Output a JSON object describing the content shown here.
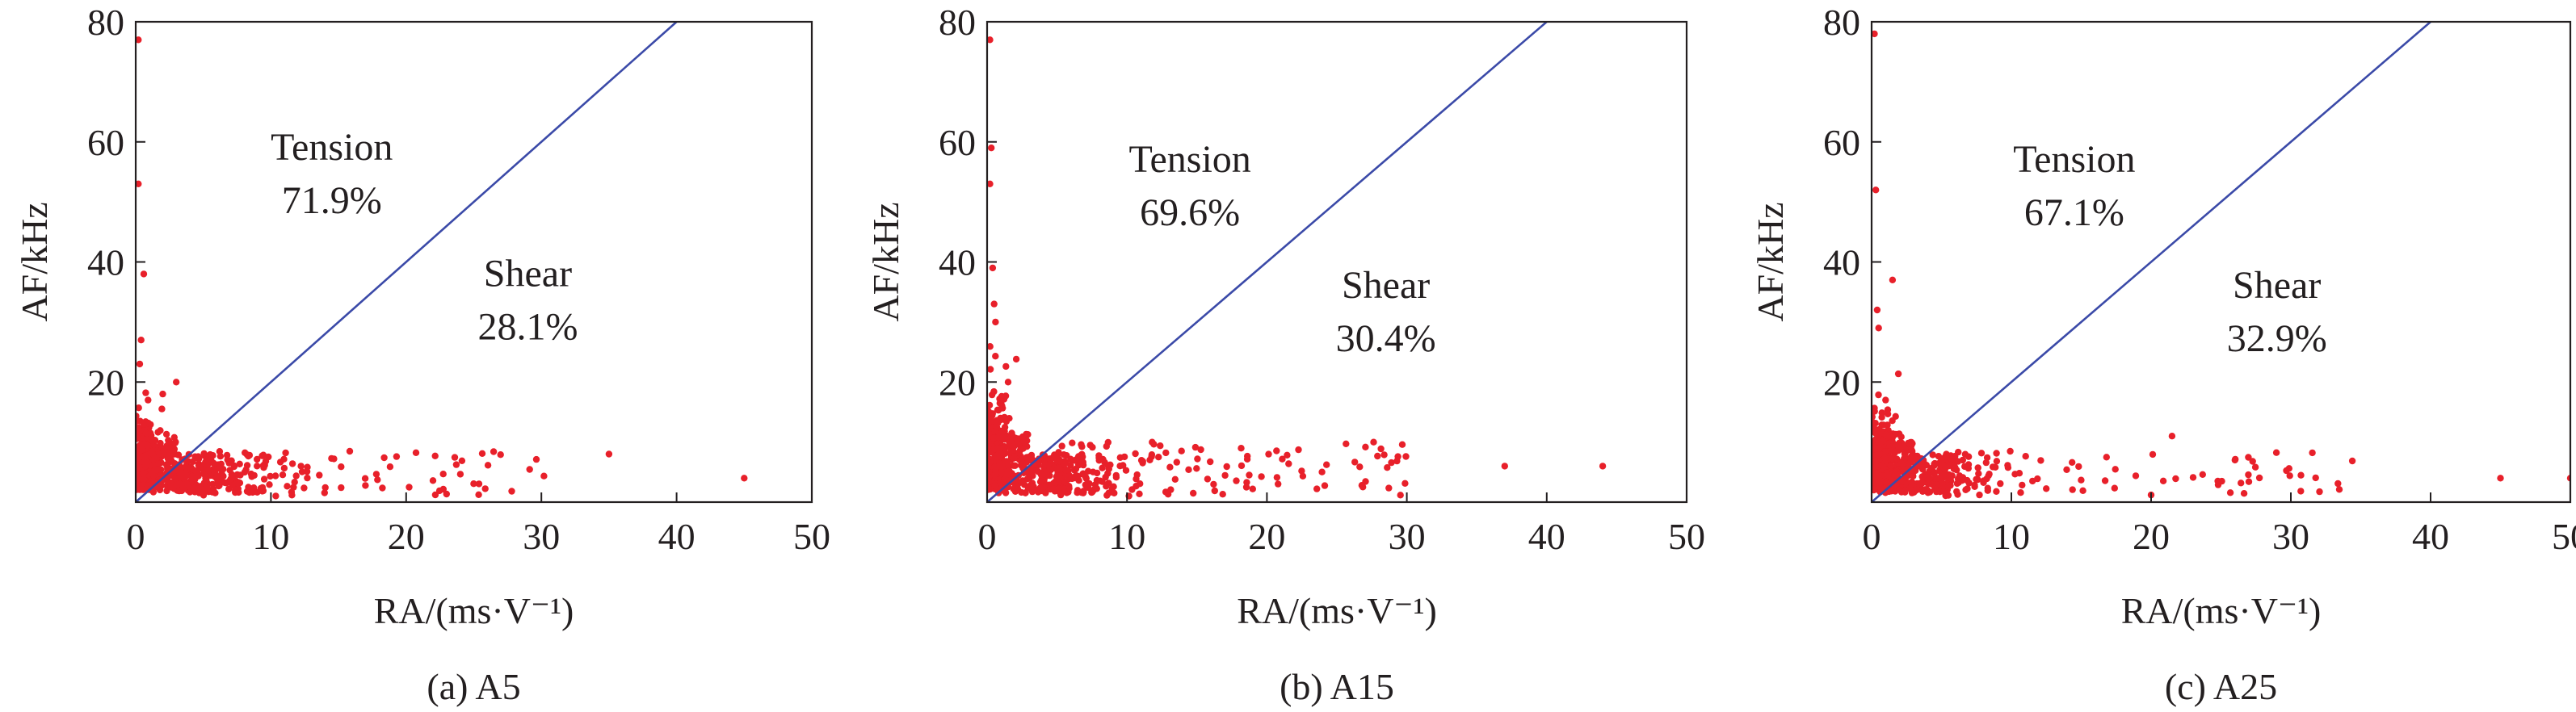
{
  "colors": {
    "points": "#e8202a",
    "boundary": "#3b4aa8",
    "axes": "#231f20"
  },
  "chart_data": [
    {
      "type": "scatter",
      "caption": "(a) A5",
      "xlabel": "RA/(ms·V⁻¹)",
      "ylabel": "AF/kHz",
      "xlim": [
        0,
        50
      ],
      "ylim": [
        0,
        80
      ],
      "xticks": [
        0,
        10,
        20,
        30,
        40,
        50
      ],
      "yticks": [
        20,
        40,
        60,
        80
      ],
      "grid": false,
      "boundary_line": {
        "x": [
          0,
          40
        ],
        "y": [
          0,
          80
        ]
      },
      "annotations": [
        {
          "label": "Tension",
          "value": "71.9%",
          "x": 14.5,
          "y": 57
        },
        {
          "label": "Shear",
          "value": "28.1%",
          "x": 29,
          "y": 36
        }
      ],
      "cluster": {
        "x_range": [
          0,
          46
        ],
        "y_range": [
          0,
          12
        ],
        "notable_points": [
          [
            0.2,
            77
          ],
          [
            0.2,
            53
          ],
          [
            0.6,
            38
          ],
          [
            0.4,
            27
          ],
          [
            0.3,
            23
          ],
          [
            2,
            18
          ],
          [
            3,
            20
          ],
          [
            35,
            8
          ],
          [
            45,
            4
          ]
        ]
      }
    },
    {
      "type": "scatter",
      "caption": "(b) A15",
      "xlabel": "RA/(ms·V⁻¹)",
      "ylabel": "AF/kHz",
      "xlim": [
        0,
        50
      ],
      "ylim": [
        0,
        80
      ],
      "xticks": [
        0,
        10,
        20,
        30,
        40,
        50
      ],
      "yticks": [
        20,
        40,
        60,
        80
      ],
      "grid": false,
      "boundary_line": {
        "x": [
          0,
          40
        ],
        "y": [
          0,
          80
        ]
      },
      "annotations": [
        {
          "label": "Tension",
          "value": "69.6%",
          "x": 14.5,
          "y": 55
        },
        {
          "label": "Shear",
          "value": "30.4%",
          "x": 28.5,
          "y": 34
        }
      ],
      "cluster": {
        "x_range": [
          0,
          45
        ],
        "y_range": [
          0,
          12
        ],
        "notable_points": [
          [
            0.2,
            77
          ],
          [
            0.3,
            59
          ],
          [
            0.2,
            53
          ],
          [
            0.4,
            39
          ],
          [
            0.5,
            33
          ],
          [
            0.6,
            30
          ],
          [
            1.5,
            20
          ],
          [
            37,
            6
          ],
          [
            44,
            6
          ]
        ]
      }
    },
    {
      "type": "scatter",
      "caption": "(c) A25",
      "xlabel": "RA/(ms·V⁻¹)",
      "ylabel": "AF/kHz",
      "xlim": [
        0,
        50
      ],
      "ylim": [
        0,
        80
      ],
      "xticks": [
        0,
        10,
        20,
        30,
        40,
        50
      ],
      "yticks": [
        20,
        40,
        60,
        80
      ],
      "grid": false,
      "boundary_line": {
        "x": [
          0,
          40
        ],
        "y": [
          0,
          80
        ]
      },
      "annotations": [
        {
          "label": "Tension",
          "value": "67.1%",
          "x": 14.5,
          "y": 55
        },
        {
          "label": "Shear",
          "value": "32.9%",
          "x": 29,
          "y": 34
        }
      ],
      "cluster": {
        "x_range": [
          0,
          50
        ],
        "y_range": [
          0,
          12
        ],
        "notable_points": [
          [
            0.2,
            78
          ],
          [
            0.3,
            52
          ],
          [
            1.5,
            37
          ],
          [
            0.4,
            32
          ],
          [
            0.5,
            29
          ],
          [
            21.5,
            11
          ],
          [
            26,
            7
          ],
          [
            45,
            4
          ],
          [
            50,
            4
          ]
        ]
      }
    }
  ]
}
